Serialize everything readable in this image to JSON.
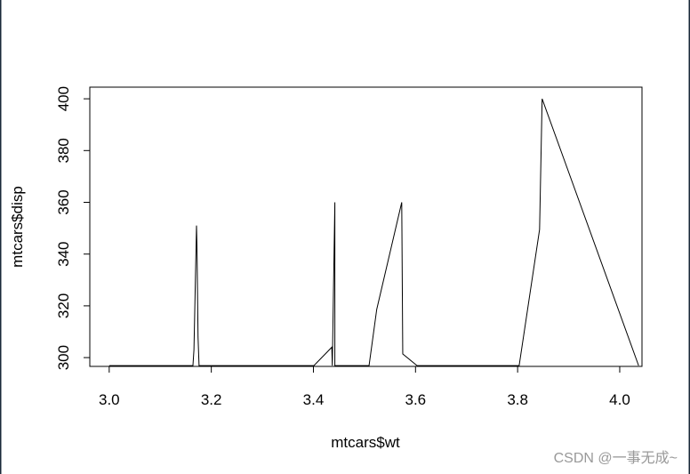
{
  "chart_data": {
    "type": "line",
    "xlabel": "mtcars$wt",
    "ylabel": "mtcars$disp",
    "annotation": "CSDN @一事无成~",
    "x": [
      3.0,
      3.164,
      3.166,
      3.171,
      3.172,
      3.174,
      3.176,
      3.401,
      3.436,
      3.437,
      3.442,
      3.442,
      3.509,
      3.524,
      3.573,
      3.575,
      3.603,
      3.803,
      3.843,
      3.848,
      4.037
    ],
    "series": [
      {
        "color": "#000000",
        "values": [
          296.9,
          296.9,
          303,
          351,
          342,
          308,
          296.9,
          296.9,
          304,
          296.9,
          360,
          296.9,
          296.9,
          318.6,
          360,
          301.4,
          296.9,
          296.9,
          349.5,
          400,
          296.9
        ]
      }
    ],
    "xlim": [
      2.962,
      4.0436
    ],
    "ylim": [
      296.6,
      404.5
    ],
    "xticks": [
      {
        "value": 3,
        "label": "3.0"
      },
      3.2,
      3.4,
      3.6,
      3.8,
      {
        "value": 4,
        "label": "4.0"
      }
    ],
    "yticks": [
      300,
      320,
      340,
      360,
      380,
      400
    ]
  }
}
